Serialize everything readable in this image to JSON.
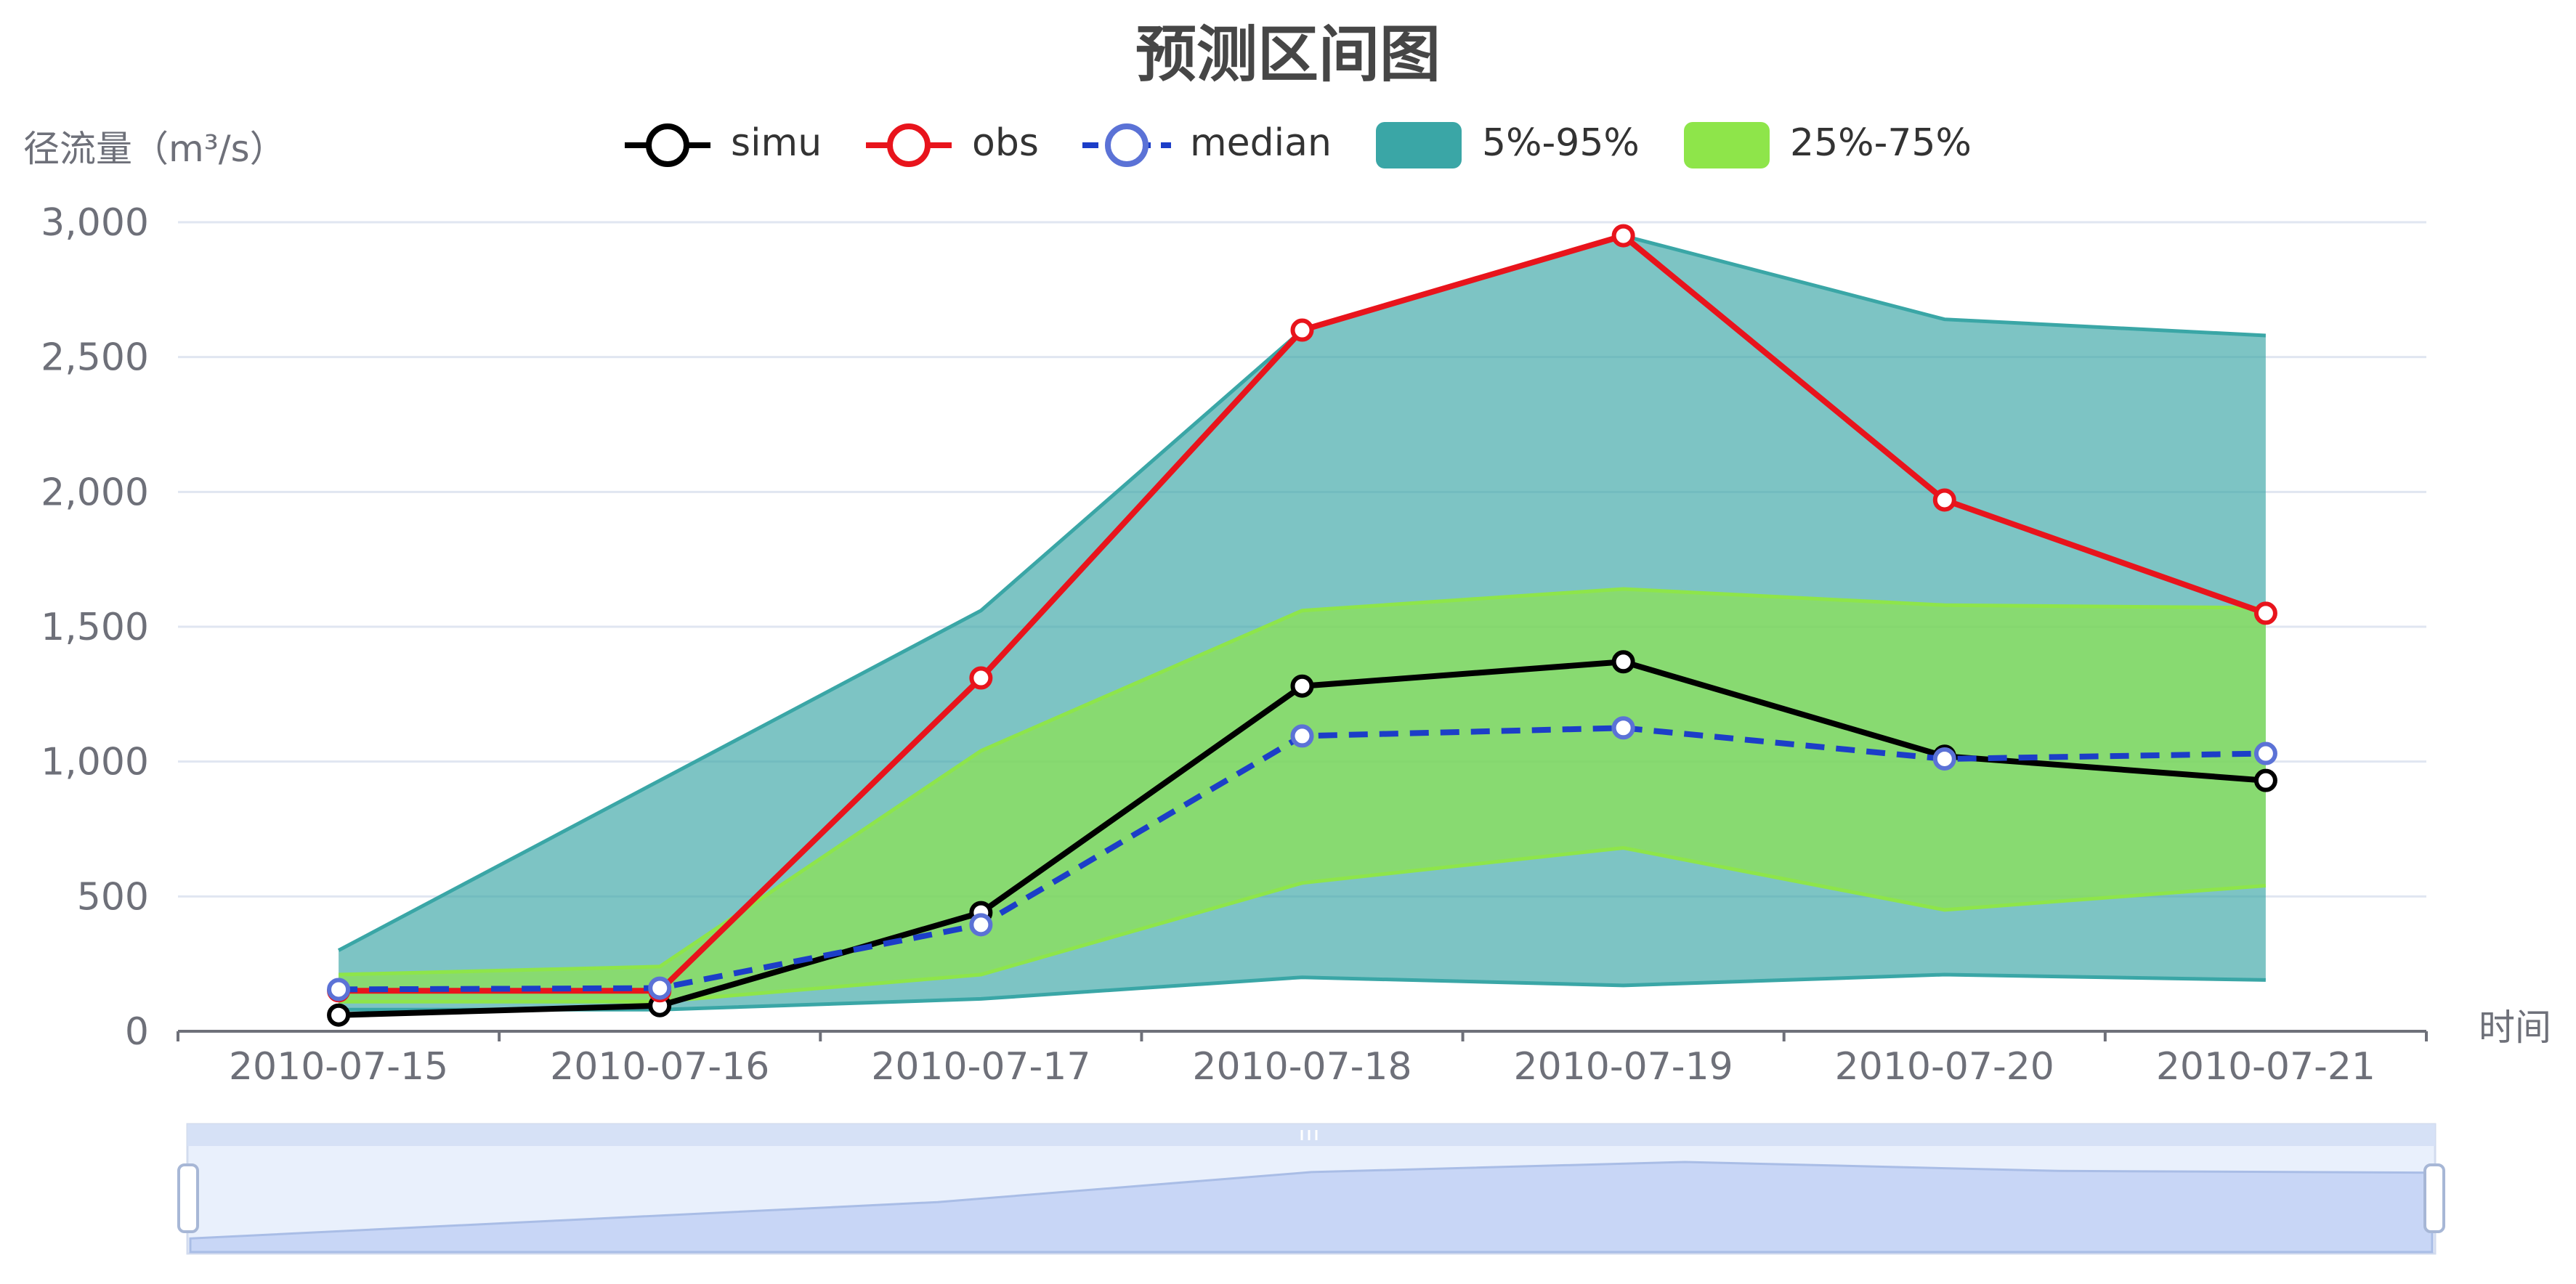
{
  "chart_data": {
    "type": "line",
    "title": "预测区间图",
    "ylabel": "径流量（m³/s）",
    "xlabel": "时间",
    "categories": [
      "2010-07-15",
      "2010-07-16",
      "2010-07-17",
      "2010-07-18",
      "2010-07-19",
      "2010-07-20",
      "2010-07-21"
    ],
    "ylim": [
      0,
      3000
    ],
    "yticks": [
      0,
      500,
      1000,
      1500,
      2000,
      2500,
      3000
    ],
    "ytick_labels": [
      "0",
      "500",
      "1,000",
      "1,500",
      "2,000",
      "2,500",
      "3,000"
    ],
    "grid": true,
    "legend_position": "top",
    "series": [
      {
        "name": "simu",
        "values": [
          60,
          95,
          440,
          1280,
          1370,
          1020,
          930
        ],
        "color": "#000000",
        "style": "solid"
      },
      {
        "name": "obs",
        "values": [
          150,
          150,
          1310,
          2600,
          2950,
          1970,
          1550
        ],
        "color": "#e8141c",
        "style": "solid"
      },
      {
        "name": "median",
        "values": [
          155,
          160,
          395,
          1095,
          1125,
          1010,
          1030
        ],
        "color": "#1c3ec8",
        "style": "dashed"
      }
    ],
    "bands": [
      {
        "name": "5%-95%",
        "lower": [
          80,
          80,
          120,
          200,
          170,
          210,
          190
        ],
        "upper": [
          300,
          930,
          1560,
          2600,
          2950,
          2640,
          2580
        ],
        "color": "#3aa6a6"
      },
      {
        "name": "25%-75%",
        "lower": [
          110,
          110,
          210,
          550,
          680,
          450,
          540
        ],
        "upper": [
          210,
          240,
          1040,
          1560,
          1640,
          1580,
          1570
        ],
        "color": "#8ee54a"
      }
    ],
    "data_zoom": {
      "start_percent": 0,
      "end_percent": 100
    }
  },
  "icons": {
    "zoom_left_handle": "slider-handle-icon",
    "zoom_right_handle": "slider-handle-icon",
    "zoom_grip": "grip-icon"
  }
}
